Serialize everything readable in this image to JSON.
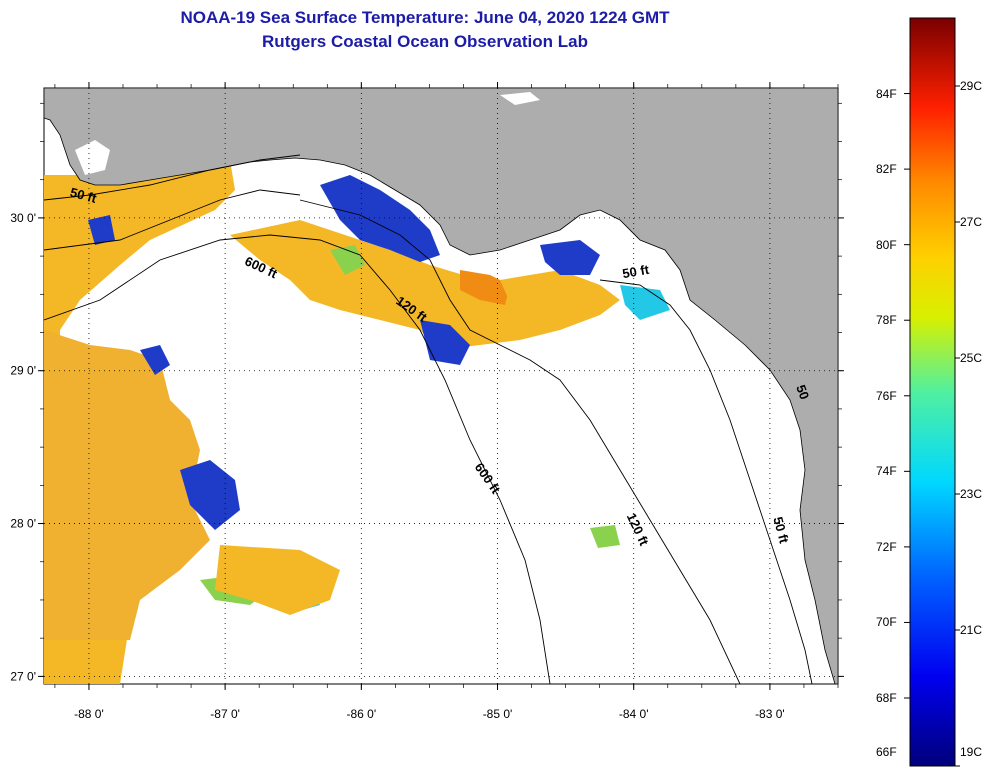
{
  "header": {
    "title": "NOAA-19 Sea Surface Temperature:  June 04, 2020 1224 GMT",
    "subtitle": "Rutgers Coastal Ocean Observation Lab"
  },
  "map": {
    "lon_range": [
      -88.33,
      -82.5
    ],
    "lat_range": [
      26.95,
      30.85
    ],
    "lon_ticks": [
      {
        "value": -88,
        "label": "-88 0'"
      },
      {
        "value": -87,
        "label": "-87 0'"
      },
      {
        "value": -86,
        "label": "-86 0'"
      },
      {
        "value": -85,
        "label": "-85 0'"
      },
      {
        "value": -84,
        "label": "-84 0'"
      },
      {
        "value": -83,
        "label": "-83 0'"
      }
    ],
    "lat_ticks": [
      {
        "value": 30,
        "label": "30 0'"
      },
      {
        "value": 29,
        "label": "29 0'"
      },
      {
        "value": 28,
        "label": "28 0'"
      },
      {
        "value": 27,
        "label": "27 0'"
      }
    ],
    "contour_labels": [
      {
        "text": "50 ft",
        "lon": -88.05,
        "lat": 30.12,
        "rotate": 15
      },
      {
        "text": "600 ft",
        "lon": -86.75,
        "lat": 29.65,
        "rotate": 25
      },
      {
        "text": "120 ft",
        "lon": -85.65,
        "lat": 29.38,
        "rotate": 35
      },
      {
        "text": "50 ft",
        "lon": -83.98,
        "lat": 29.62,
        "rotate": -10
      },
      {
        "text": "600 ft",
        "lon": -85.1,
        "lat": 28.28,
        "rotate": 55
      },
      {
        "text": "120 ft",
        "lon": -84.0,
        "lat": 27.95,
        "rotate": 65
      },
      {
        "text": "50 ft",
        "lon": -82.95,
        "lat": 27.95,
        "rotate": 75
      },
      {
        "text": "50",
        "lon": -82.79,
        "lat": 28.85,
        "rotate": 70
      }
    ],
    "colors": {
      "land": "#adadad",
      "no_data": "#ffffff",
      "warm": "#f4b826",
      "orange": "#f08c14",
      "cool": "#1e3cc8",
      "green": "#8ad24e",
      "cyan": "#22c8e6"
    }
  },
  "colorbar": {
    "fahrenheit": [
      "84F",
      "82F",
      "80F",
      "78F",
      "76F",
      "74F",
      "72F",
      "70F",
      "68F",
      "66F"
    ],
    "celsius": [
      "29C",
      "27C",
      "25C",
      "23C",
      "21C",
      "19C"
    ],
    "f_values": [
      84,
      82,
      80,
      78,
      76,
      74,
      72,
      70,
      68,
      66
    ],
    "c_values": [
      29,
      27,
      25,
      23,
      21,
      19
    ],
    "c_min": 19,
    "c_max": 30
  }
}
